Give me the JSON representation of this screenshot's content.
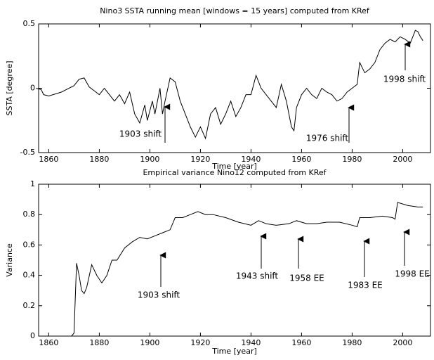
{
  "chart_data": [
    {
      "type": "line",
      "title": "Nino3 SSTA running mean [windows = 15 years] computed from KRef",
      "xlabel": "Time [year]",
      "ylabel": "SSTA [degree]",
      "x": [
        1855,
        1857,
        1858,
        1860,
        1865,
        1870,
        1872,
        1874,
        1876,
        1878,
        1880,
        1882,
        1884,
        1886,
        1888,
        1890,
        1892,
        1894,
        1896,
        1898,
        1899,
        1901,
        1902,
        1904,
        1905,
        1906,
        1908,
        1910,
        1912,
        1914,
        1916,
        1918,
        1920,
        1922,
        1924,
        1926,
        1928,
        1930,
        1932,
        1934,
        1936,
        1938,
        1940,
        1942,
        1944,
        1946,
        1948,
        1950,
        1952,
        1954,
        1956,
        1957,
        1958,
        1960,
        1962,
        1964,
        1966,
        1968,
        1970,
        1972,
        1974,
        1976,
        1978,
        1980,
        1982,
        1983,
        1985,
        1987,
        1989,
        1991,
        1993,
        1995,
        1997,
        1999,
        2001,
        2003,
        2005,
        2006,
        2007,
        2008
      ],
      "series": [
        {
          "color": "#000000",
          "values": [
            0.0,
            -0.01,
            -0.05,
            -0.06,
            -0.03,
            0.02,
            0.07,
            0.08,
            0.01,
            -0.02,
            -0.05,
            0.0,
            -0.05,
            -0.1,
            -0.05,
            -0.12,
            -0.03,
            -0.2,
            -0.27,
            -0.13,
            -0.25,
            -0.1,
            -0.2,
            0.0,
            -0.2,
            -0.1,
            0.08,
            0.05,
            -0.1,
            -0.2,
            -0.3,
            -0.38,
            -0.3,
            -0.39,
            -0.2,
            -0.15,
            -0.28,
            -0.2,
            -0.1,
            -0.22,
            -0.15,
            -0.05,
            -0.05,
            0.1,
            0.0,
            -0.05,
            -0.1,
            -0.15,
            0.03,
            -0.1,
            -0.3,
            -0.33,
            -0.15,
            -0.05,
            0.0,
            -0.05,
            -0.08,
            0.0,
            -0.03,
            -0.05,
            -0.1,
            -0.08,
            -0.03,
            0.0,
            0.03,
            0.2,
            0.12,
            0.15,
            0.2,
            0.3,
            0.35,
            0.38,
            0.36,
            0.4,
            0.38,
            0.35,
            0.45,
            0.44,
            0.4,
            0.37
          ]
        }
      ],
      "xlim": [
        1856,
        2011
      ],
      "ylim": [
        -0.5,
        0.5
      ],
      "xticks": [
        1860,
        1880,
        1900,
        1920,
        1940,
        1960,
        1980,
        2000
      ],
      "yticks": [
        -0.5,
        0,
        0.5
      ],
      "annotations": [
        "1903 shift",
        "1976 shift",
        "1998 shift"
      ]
    },
    {
      "type": "line",
      "title": "Empirical variance Nino12 computed from KRef",
      "xlabel": "Time [year]",
      "ylabel": "Variance",
      "x": [
        1869,
        1870,
        1871,
        1872,
        1873,
        1874,
        1875,
        1877,
        1879,
        1881,
        1883,
        1885,
        1887,
        1890,
        1893,
        1896,
        1899,
        1902,
        1905,
        1908,
        1910,
        1913,
        1916,
        1919,
        1922,
        1925,
        1930,
        1935,
        1940,
        1943,
        1946,
        1950,
        1955,
        1958,
        1962,
        1966,
        1970,
        1975,
        1980,
        1982,
        1983,
        1987,
        1992,
        1996,
        1997,
        1998,
        2002,
        2006,
        2008
      ],
      "series": [
        {
          "color": "#000000",
          "values": [
            0,
            0.02,
            0.48,
            0.4,
            0.3,
            0.28,
            0.32,
            0.47,
            0.4,
            0.35,
            0.4,
            0.5,
            0.5,
            0.58,
            0.62,
            0.65,
            0.64,
            0.66,
            0.68,
            0.7,
            0.78,
            0.78,
            0.8,
            0.82,
            0.8,
            0.8,
            0.78,
            0.75,
            0.73,
            0.76,
            0.74,
            0.73,
            0.74,
            0.76,
            0.74,
            0.74,
            0.75,
            0.75,
            0.73,
            0.72,
            0.78,
            0.78,
            0.79,
            0.78,
            0.77,
            0.88,
            0.86,
            0.85,
            0.85
          ]
        }
      ],
      "xlim": [
        1856,
        2011
      ],
      "ylim": [
        0,
        1
      ],
      "xticks": [
        1860,
        1880,
        1900,
        1920,
        1940,
        1960,
        1980,
        2000
      ],
      "yticks": [
        0,
        0.2,
        0.4,
        0.6,
        0.8,
        1
      ],
      "annotations": [
        "1903 shift",
        "1943 shift",
        "1958 EE",
        "1983 EE",
        "1998 EE"
      ]
    }
  ]
}
